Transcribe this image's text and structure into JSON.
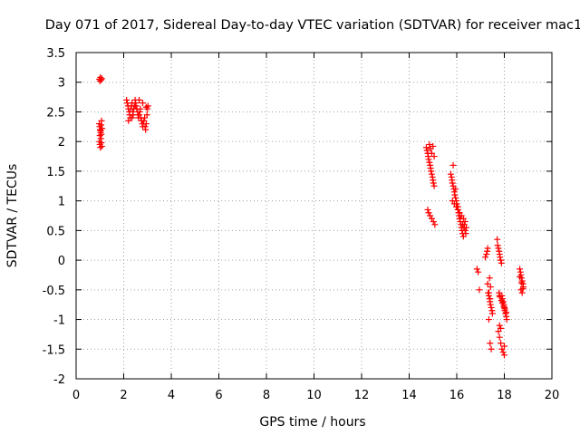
{
  "chart_data": {
    "type": "scatter",
    "title": "Day 071 of 2017, Sidereal Day-to-day VTEC variation (SDTVAR) for receiver mac1",
    "xlabel": "GPS time / hours",
    "ylabel": "SDTVAR / TECUs",
    "xlim": [
      0,
      20
    ],
    "ylim": [
      -2,
      3.5
    ],
    "xticks": [
      0,
      2,
      4,
      6,
      8,
      10,
      12,
      14,
      16,
      18,
      20
    ],
    "yticks": [
      -2,
      -1.5,
      -1,
      -0.5,
      0,
      0.5,
      1,
      1.5,
      2,
      2.5,
      3,
      3.5
    ],
    "xtick_labels": [
      "0",
      "2",
      "4",
      "6",
      "8",
      "10",
      "12",
      "14",
      "16",
      "18",
      "20"
    ],
    "ytick_labels": [
      "-2",
      "-1.5",
      "-1",
      "-0.5",
      "0",
      "0.5",
      "1",
      "1.5",
      "2",
      "2.5",
      "3",
      "3.5"
    ],
    "grid": true,
    "marker": "+",
    "color": "#ff0000",
    "series": [
      {
        "name": "SDTVAR",
        "x": [
          0.98,
          1.0,
          1.02,
          1.05,
          1.08,
          0.97,
          0.99,
          1.01,
          1.03,
          1.05,
          1.07,
          1.09,
          0.98,
          1.0,
          1.02,
          1.04,
          1.06,
          1.08,
          1.0,
          1.03,
          1.06,
          2.12,
          2.15,
          2.18,
          2.2,
          2.23,
          2.25,
          2.28,
          2.3,
          2.33,
          2.35,
          2.38,
          2.4,
          2.42,
          2.45,
          2.48,
          2.5,
          2.52,
          2.55,
          2.58,
          2.6,
          2.62,
          2.65,
          2.68,
          2.7,
          2.72,
          2.75,
          2.78,
          2.8,
          2.82,
          2.85,
          2.88,
          2.9,
          2.92,
          2.95,
          2.98,
          3.0,
          3.02,
          2.2,
          2.35,
          2.5,
          2.65,
          2.8,
          2.95,
          14.72,
          14.75,
          14.78,
          14.8,
          14.82,
          14.85,
          14.88,
          14.9,
          14.92,
          14.95,
          14.98,
          15.0,
          15.02,
          15.05,
          14.85,
          14.9,
          14.95,
          15.0,
          15.05,
          14.78,
          14.82,
          14.88,
          14.95,
          15.02,
          15.08,
          15.75,
          15.78,
          15.8,
          15.82,
          15.85,
          15.88,
          15.9,
          15.92,
          15.95,
          15.98,
          16.0,
          16.02,
          16.05,
          16.08,
          16.1,
          16.12,
          16.15,
          16.18,
          16.2,
          16.22,
          16.25,
          16.28,
          16.3,
          16.32,
          16.35,
          16.38,
          16.4,
          15.82,
          15.9,
          15.98,
          16.05,
          16.12,
          16.2,
          16.28,
          16.35,
          15.85,
          15.95,
          16.05,
          16.15,
          16.25,
          16.85,
          16.9,
          16.95,
          17.2,
          17.25,
          17.28,
          17.3,
          17.32,
          17.35,
          17.38,
          17.4,
          17.42,
          17.45,
          17.48,
          17.5,
          17.3,
          17.35,
          17.4,
          17.45,
          17.38,
          17.42,
          17.35,
          17.4,
          17.7,
          17.72,
          17.75,
          17.78,
          17.8,
          17.82,
          17.85,
          17.88,
          17.9,
          17.92,
          17.95,
          17.98,
          18.0,
          18.02,
          18.05,
          18.08,
          18.1,
          17.75,
          17.8,
          17.85,
          17.9,
          17.95,
          18.0,
          17.78,
          17.82,
          17.88,
          17.92,
          17.98,
          18.02,
          18.08,
          17.8,
          17.85,
          18.0,
          17.8,
          18.65,
          18.68,
          18.7,
          18.72,
          18.75,
          18.78,
          18.8,
          18.7,
          18.75,
          18.65,
          18.72,
          18.78
        ],
        "y": [
          3.05,
          3.02,
          3.08,
          3.04,
          3.06,
          2.3,
          2.25,
          2.2,
          2.15,
          2.28,
          2.35,
          2.22,
          2.0,
          1.95,
          1.9,
          2.05,
          1.98,
          1.92,
          2.1,
          2.18,
          2.12,
          2.7,
          2.65,
          2.6,
          2.55,
          2.5,
          2.45,
          2.4,
          2.55,
          2.6,
          2.65,
          2.5,
          2.45,
          2.55,
          2.6,
          2.7,
          2.65,
          2.6,
          2.55,
          2.5,
          2.45,
          2.4,
          2.45,
          2.5,
          2.55,
          2.4,
          2.35,
          2.3,
          2.25,
          2.3,
          2.35,
          2.4,
          2.25,
          2.2,
          2.3,
          2.45,
          2.55,
          2.6,
          2.35,
          2.4,
          2.6,
          2.7,
          2.65,
          2.58,
          1.9,
          1.85,
          1.8,
          1.75,
          1.7,
          1.65,
          1.6,
          1.55,
          1.5,
          1.45,
          1.4,
          1.35,
          1.3,
          1.25,
          1.95,
          1.88,
          1.8,
          1.92,
          1.75,
          0.85,
          0.8,
          0.75,
          0.7,
          0.65,
          0.6,
          1.45,
          1.4,
          1.35,
          1.3,
          1.25,
          1.2,
          1.15,
          1.1,
          1.05,
          1.0,
          0.95,
          0.9,
          0.85,
          0.8,
          0.75,
          0.7,
          0.65,
          0.6,
          0.55,
          0.5,
          0.45,
          0.4,
          0.55,
          0.6,
          0.5,
          0.45,
          0.55,
          1.0,
          0.95,
          0.9,
          0.85,
          0.8,
          0.75,
          0.7,
          0.65,
          1.6,
          1.2,
          0.9,
          0.7,
          0.6,
          -0.15,
          -0.2,
          -0.5,
          0.05,
          0.1,
          0.15,
          0.2,
          -0.55,
          -0.6,
          -0.65,
          -0.7,
          -0.75,
          -0.8,
          -0.85,
          -0.9,
          -0.4,
          -1.0,
          -1.4,
          -1.5,
          -0.3,
          -0.45,
          -0.55,
          -0.65,
          0.35,
          0.25,
          0.2,
          0.15,
          0.1,
          0.05,
          0.0,
          -0.05,
          -0.6,
          -0.65,
          -0.7,
          -0.75,
          -0.8,
          -0.85,
          -0.9,
          -0.95,
          -1.0,
          -1.2,
          -1.3,
          -1.4,
          -1.5,
          -1.55,
          -1.6,
          -0.55,
          -0.62,
          -0.68,
          -0.72,
          -0.78,
          -0.82,
          -0.88,
          -1.1,
          -1.15,
          -1.45,
          -0.6,
          -0.15,
          -0.2,
          -0.25,
          -0.3,
          -0.35,
          -0.4,
          -0.45,
          -0.5,
          -0.55,
          -0.28,
          -0.38,
          -0.48
        ]
      }
    ]
  }
}
